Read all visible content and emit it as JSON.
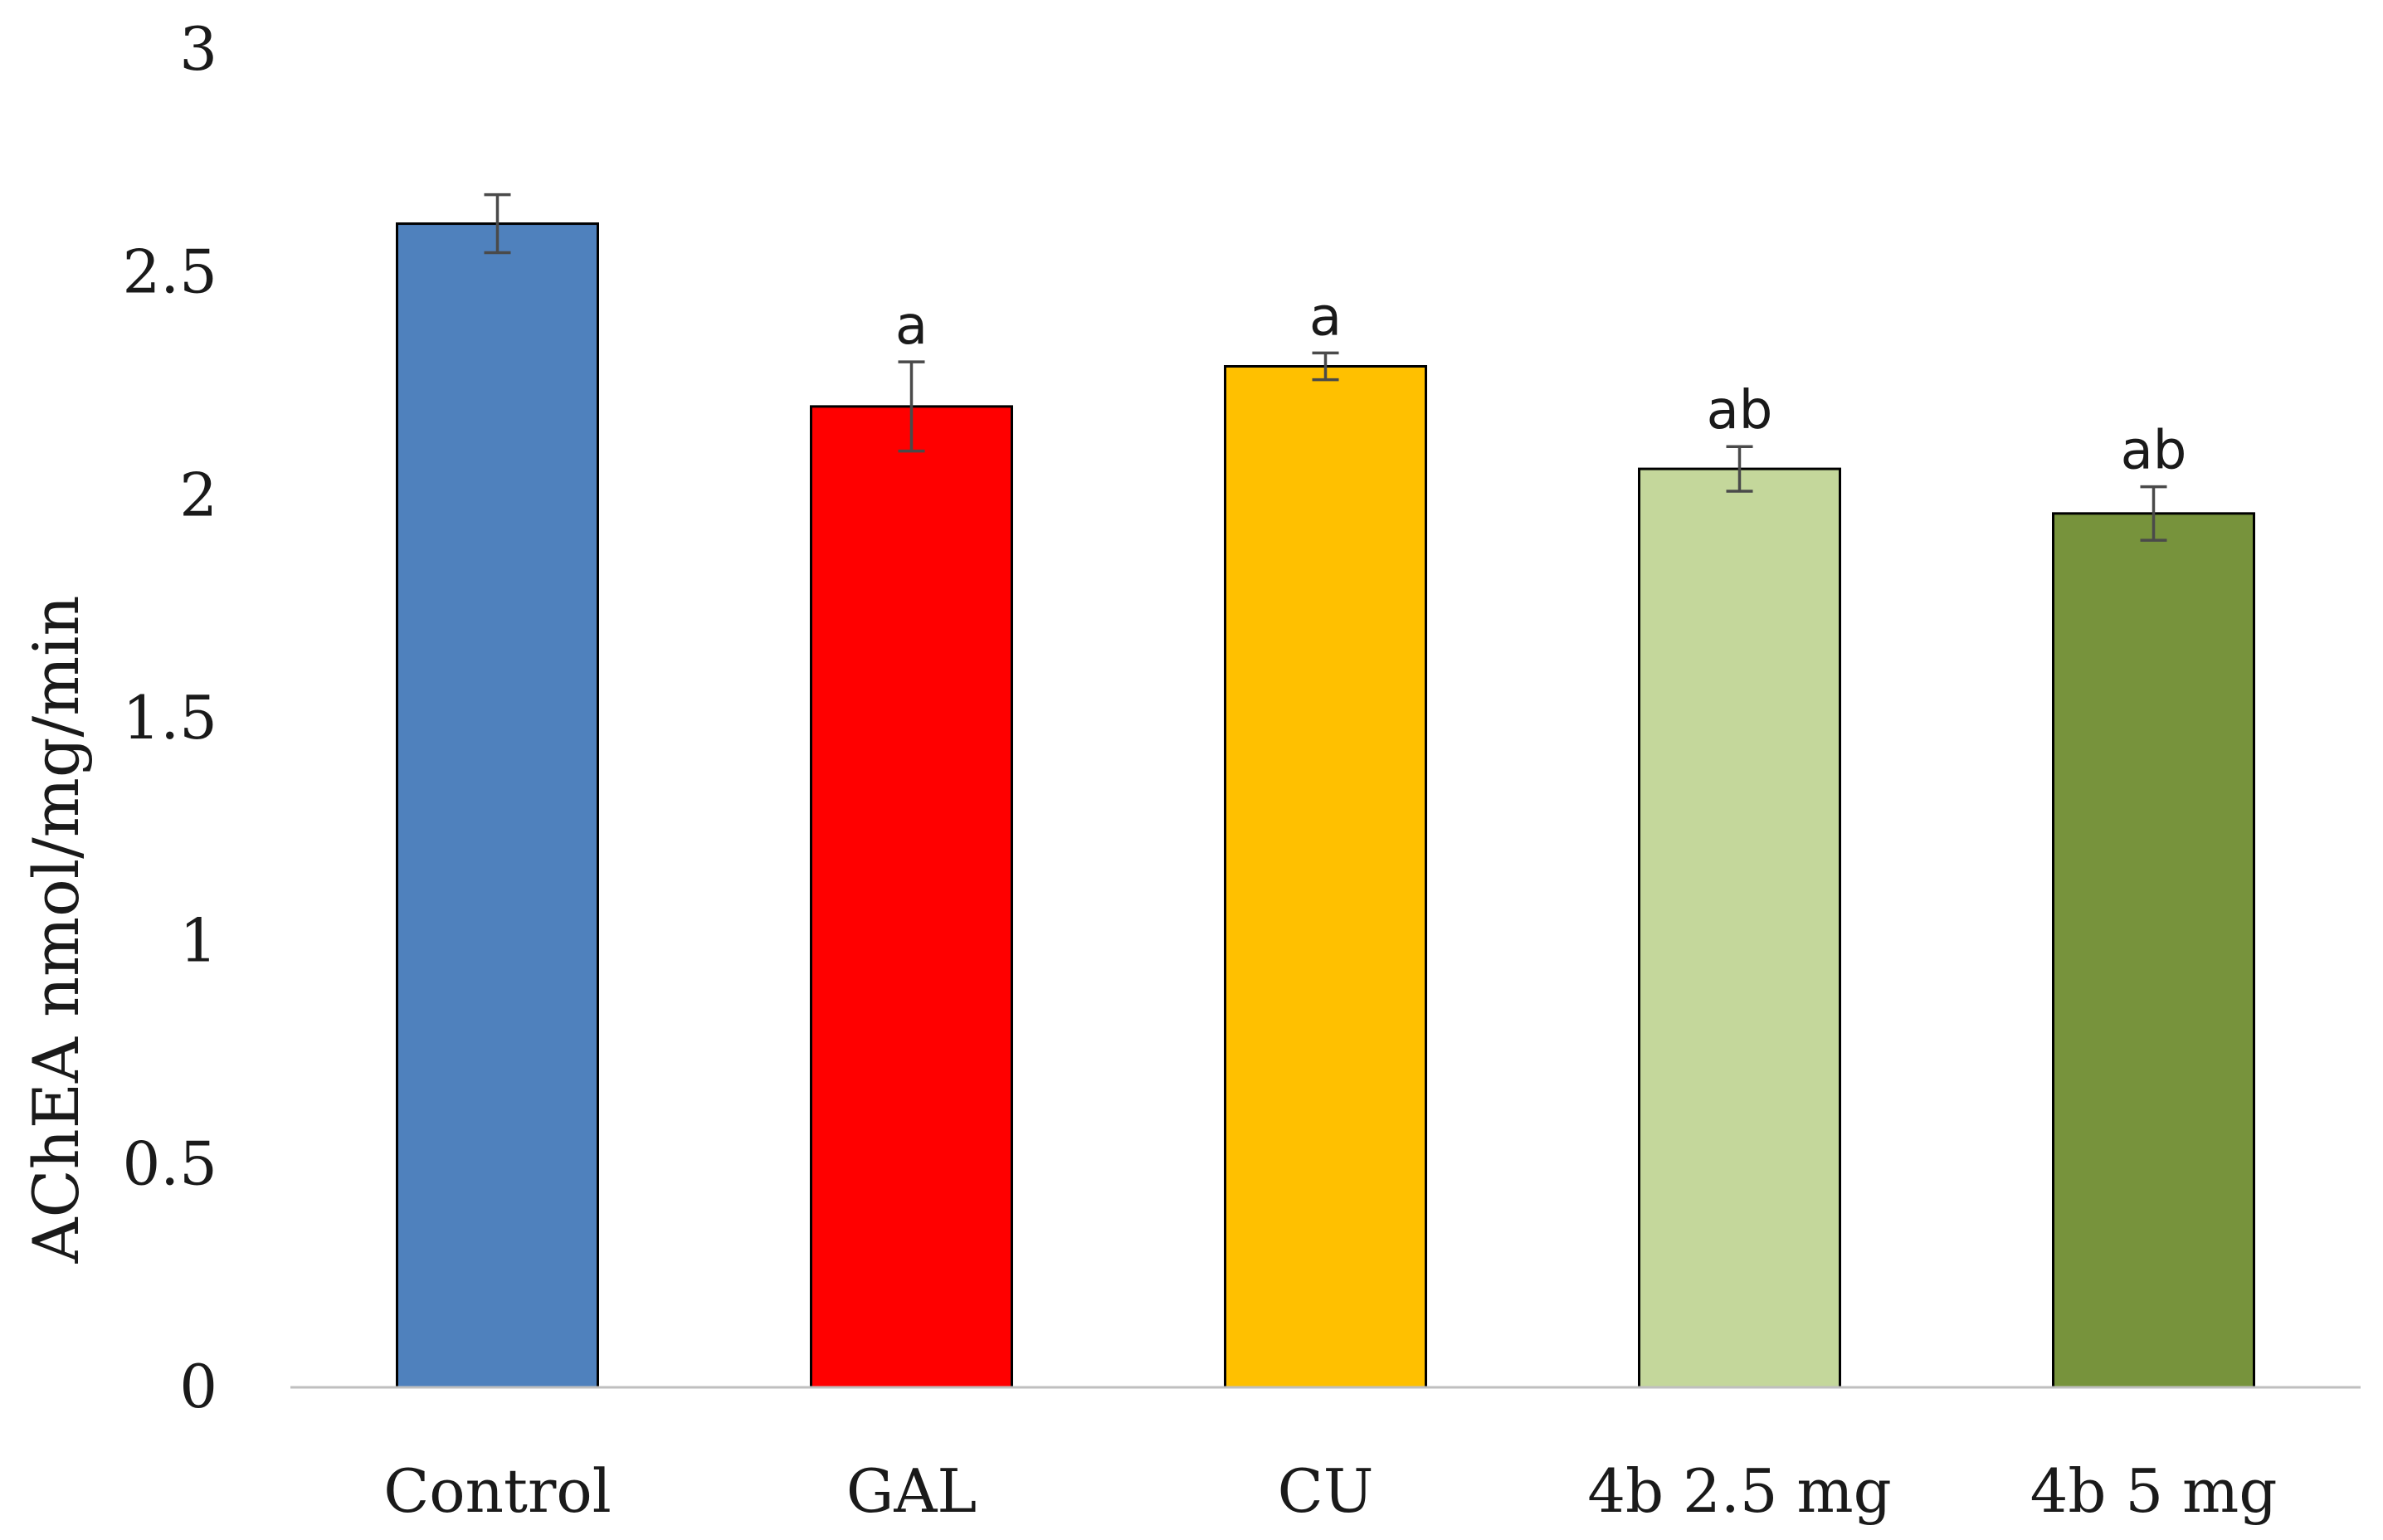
{
  "chart_data": {
    "type": "bar",
    "title": "",
    "xlabel": "",
    "ylabel": "AChEA nmol/mg/min",
    "ylim": [
      0,
      3
    ],
    "yticks": [
      {
        "value": 0,
        "label": "0"
      },
      {
        "value": 0.5,
        "label": "0.5"
      },
      {
        "value": 1,
        "label": "1"
      },
      {
        "value": 1.5,
        "label": "1.5"
      },
      {
        "value": 2,
        "label": "2"
      },
      {
        "value": 2.5,
        "label": "2.5"
      },
      {
        "value": 3,
        "label": "3"
      }
    ],
    "grid": false,
    "categories": [
      "Control",
      "GAL",
      "CU",
      "4b 2.5 mg",
      "4b 5 mg"
    ],
    "values": [
      2.61,
      2.2,
      2.29,
      2.06,
      1.96
    ],
    "errors": [
      0.065,
      0.1,
      0.03,
      0.05,
      0.06
    ],
    "significance": [
      "",
      "a",
      "a",
      "ab",
      "ab"
    ],
    "colors": [
      "#4f81bd",
      "#ff0000",
      "#ffc000",
      "#c4d79b",
      "#77933c"
    ]
  }
}
